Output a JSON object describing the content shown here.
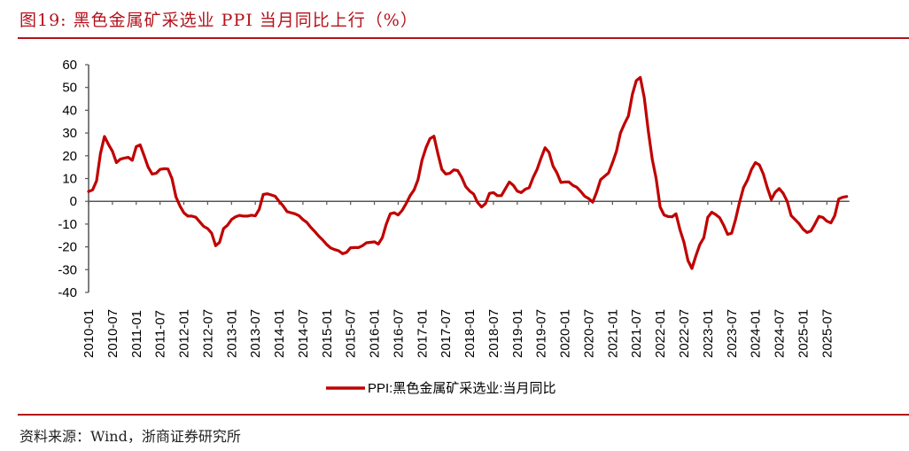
{
  "header": {
    "title": "图19:  黑色金属矿采选业 PPI 当月同比上行（%）"
  },
  "footer": {
    "source": "资料来源：Wind，浙商证券研究所"
  },
  "colors": {
    "accent": "#b5121b",
    "series": "#c00000",
    "axis": "#555555"
  },
  "chart_data": {
    "type": "line",
    "title": "",
    "xlabel": "",
    "ylabel": "",
    "ylim": [
      -40,
      60
    ],
    "y_ticks": [
      60,
      50,
      40,
      30,
      20,
      10,
      0,
      -10,
      -20,
      -30,
      -40
    ],
    "x_tick_labels": [
      "2010-01",
      "2010-07",
      "2011-01",
      "2011-07",
      "2012-01",
      "2012-07",
      "2013-01",
      "2013-07",
      "2014-01",
      "2014-07",
      "2015-01",
      "2015-07",
      "2016-01",
      "2016-07",
      "2017-01",
      "2017-07",
      "2018-01",
      "2018-07",
      "2019-01",
      "2019-07",
      "2020-01",
      "2020-07",
      "2021-01",
      "2021-07",
      "2022-01",
      "2022-07",
      "2023-01",
      "2023-07",
      "2024-01",
      "2024-07",
      "2025-01",
      "2025-07"
    ],
    "grid": false,
    "legend_position": "bottom",
    "x": [
      "2010-01",
      "2010-02",
      "2010-03",
      "2010-04",
      "2010-05",
      "2010-06",
      "2010-07",
      "2010-08",
      "2010-09",
      "2010-10",
      "2010-11",
      "2010-12",
      "2011-01",
      "2011-02",
      "2011-03",
      "2011-04",
      "2011-05",
      "2011-06",
      "2011-07",
      "2011-08",
      "2011-09",
      "2011-10",
      "2011-11",
      "2011-12",
      "2012-01",
      "2012-02",
      "2012-03",
      "2012-04",
      "2012-05",
      "2012-06",
      "2012-07",
      "2012-08",
      "2012-09",
      "2012-10",
      "2012-11",
      "2012-12",
      "2013-01",
      "2013-02",
      "2013-03",
      "2013-04",
      "2013-05",
      "2013-06",
      "2013-07",
      "2013-08",
      "2013-09",
      "2013-10",
      "2013-11",
      "2013-12",
      "2014-01",
      "2014-02",
      "2014-03",
      "2014-04",
      "2014-05",
      "2014-06",
      "2014-07",
      "2014-08",
      "2014-09",
      "2014-10",
      "2014-11",
      "2014-12",
      "2015-01",
      "2015-02",
      "2015-03",
      "2015-04",
      "2015-05",
      "2015-06",
      "2015-07",
      "2015-08",
      "2015-09",
      "2015-10",
      "2015-11",
      "2015-12",
      "2016-01",
      "2016-02",
      "2016-03",
      "2016-04",
      "2016-05",
      "2016-06",
      "2016-07",
      "2016-08",
      "2016-09",
      "2016-10",
      "2016-11",
      "2016-12",
      "2017-01",
      "2017-02",
      "2017-03",
      "2017-04",
      "2017-05",
      "2017-06",
      "2017-07",
      "2017-08",
      "2017-09",
      "2017-10",
      "2017-11",
      "2017-12",
      "2018-01",
      "2018-02",
      "2018-03",
      "2018-04",
      "2018-05",
      "2018-06",
      "2018-07",
      "2018-08",
      "2018-09",
      "2018-10",
      "2018-11",
      "2018-12",
      "2019-01",
      "2019-02",
      "2019-03",
      "2019-04",
      "2019-05",
      "2019-06",
      "2019-07",
      "2019-08",
      "2019-09",
      "2019-10",
      "2019-11",
      "2019-12",
      "2020-01",
      "2020-02",
      "2020-03",
      "2020-04",
      "2020-05",
      "2020-06",
      "2020-07",
      "2020-08",
      "2020-09",
      "2020-10",
      "2020-11",
      "2020-12",
      "2021-01",
      "2021-02",
      "2021-03",
      "2021-04",
      "2021-05",
      "2021-06",
      "2021-07",
      "2021-08",
      "2021-09",
      "2021-10",
      "2021-11",
      "2021-12",
      "2022-01",
      "2022-02",
      "2022-03",
      "2022-04",
      "2022-05",
      "2022-06",
      "2022-07",
      "2022-08",
      "2022-09",
      "2022-10",
      "2022-11",
      "2022-12",
      "2023-01",
      "2023-02",
      "2023-03",
      "2023-04",
      "2023-05",
      "2023-06",
      "2023-07",
      "2023-08",
      "2023-09",
      "2023-10",
      "2023-11",
      "2023-12",
      "2024-01",
      "2024-02",
      "2024-03",
      "2024-04",
      "2024-05",
      "2024-06",
      "2024-07",
      "2024-08",
      "2024-09",
      "2024-10",
      "2024-11",
      "2024-12",
      "2025-01",
      "2025-02",
      "2025-03",
      "2025-04",
      "2025-05",
      "2025-06",
      "2025-07",
      "2025-08",
      "2025-09",
      "2025-10",
      "2025-11",
      "2025-12"
    ],
    "series": [
      {
        "name": "PPI:黑色金属矿采选业:当月同比",
        "values": [
          4.3,
          5,
          9,
          21,
          28.5,
          25,
          22,
          17,
          18.5,
          19,
          19.3,
          18,
          24,
          24.8,
          20,
          15,
          12,
          12.3,
          14,
          14.3,
          14.2,
          10,
          2,
          -2,
          -5,
          -6.5,
          -6.5,
          -7,
          -9,
          -11,
          -12,
          -14,
          -19.5,
          -18,
          -12,
          -10.5,
          -8,
          -6.8,
          -6.2,
          -6.5,
          -6.5,
          -6.1,
          -6.4,
          -3.5,
          3,
          3.3,
          2.8,
          2.2,
          0,
          -2,
          -4.5,
          -5,
          -5.5,
          -6.3,
          -8,
          -9.3,
          -11.5,
          -13.3,
          -15.3,
          -17,
          -19,
          -20.5,
          -21.2,
          -21.7,
          -23,
          -22.4,
          -20.4,
          -20.3,
          -20.3,
          -19.5,
          -18.2,
          -18,
          -17.8,
          -18.8,
          -16,
          -10,
          -5.5,
          -5,
          -6,
          -4,
          -1,
          2.5,
          5,
          9.5,
          18,
          23.5,
          27.5,
          28.6,
          21,
          14,
          12,
          12.3,
          13.8,
          13.5,
          10.5,
          6.5,
          4.5,
          3.2,
          -0.5,
          -2.5,
          -1,
          3.5,
          3.8,
          2.5,
          2.5,
          5.5,
          8.5,
          7,
          4.5,
          3.8,
          5.3,
          6,
          10.5,
          14,
          19,
          23.5,
          21.5,
          15.5,
          12.5,
          8.3,
          8.5,
          8.5,
          7,
          6.2,
          4.3,
          2.2,
          1.2,
          -0.4,
          4,
          9.5,
          11,
          12.5,
          17,
          22,
          30,
          34,
          37.5,
          47,
          53,
          54.4,
          45.5,
          31,
          18.5,
          10,
          -2.5,
          -6,
          -6.7,
          -6.8,
          -5.5,
          -12.5,
          -18,
          -26,
          -29.5,
          -24,
          -19,
          -16,
          -7,
          -4.8,
          -5.8,
          -7.2,
          -10.5,
          -14.5,
          -14,
          -8,
          -0.5,
          6,
          9.3,
          14,
          17,
          16,
          12,
          6,
          0.8,
          4,
          5.6,
          3.5,
          0,
          -6.3,
          -8,
          -9.8,
          -12.2,
          -13.7,
          -13,
          -10,
          -6.6,
          -7.1,
          -8.7,
          -9.5,
          -6.3,
          1,
          1.8,
          2.1
        ]
      }
    ]
  }
}
